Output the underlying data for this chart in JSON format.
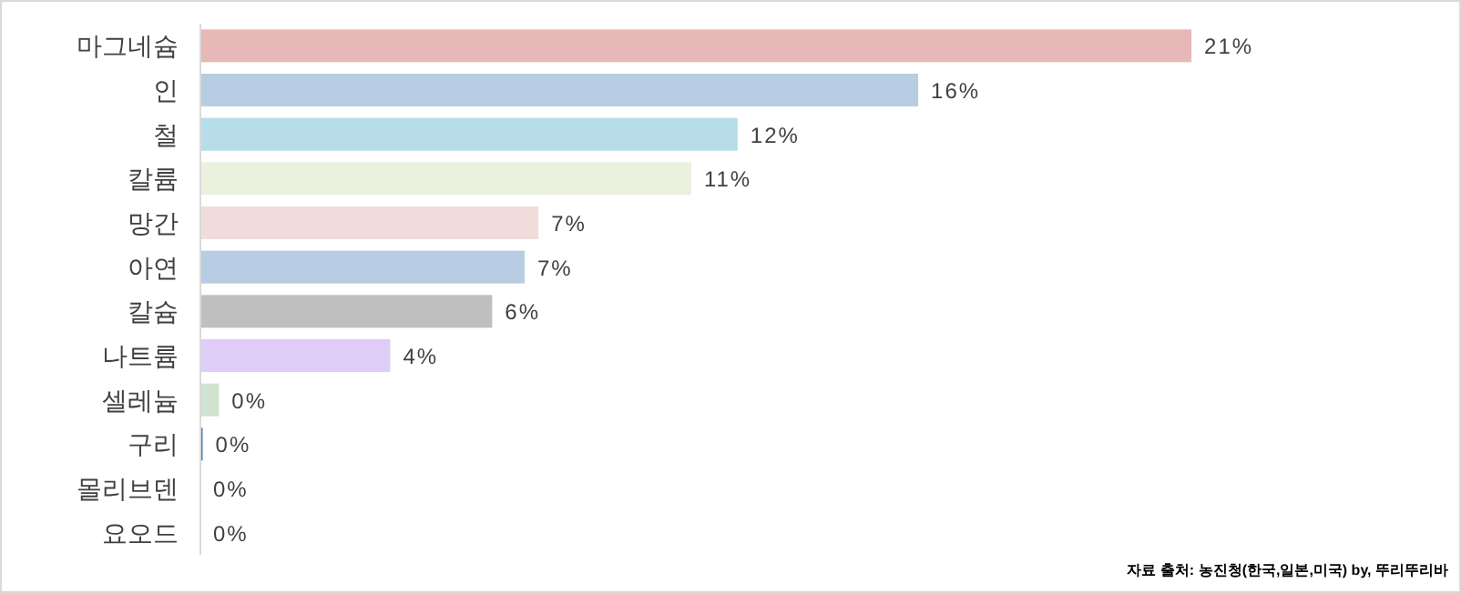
{
  "chart_data": {
    "type": "bar",
    "orientation": "horizontal",
    "categories": [
      "마그네슘",
      "인",
      "철",
      "칼륨",
      "망간",
      "아연",
      "칼슘",
      "나트륨",
      "셀레늄",
      "구리",
      "몰리브덴",
      "요오드"
    ],
    "values": [
      21.4,
      15.5,
      11.6,
      10.6,
      7.3,
      7.0,
      6.3,
      4.1,
      0.4,
      0.05,
      0,
      0
    ],
    "colors": [
      "#e6b8b7",
      "#b8cce4",
      "#b7dde8",
      "#ebf1de",
      "#f2dcdb",
      "#b8cce4",
      "#bfbfbf",
      "#dfcdf7",
      "#d0e3d0",
      "#4f81bd",
      "#dbe5f1",
      "#dbe5f1"
    ],
    "value_labels": [
      "21%",
      "16%",
      "12%",
      "11%",
      "7%",
      "7%",
      "6%",
      "4%",
      "0%",
      "0%",
      "0%",
      "0%"
    ],
    "annotations": [
      "자료 출처: 농진청(한국,일본,미국) by, 뚜리뚜리바"
    ]
  }
}
